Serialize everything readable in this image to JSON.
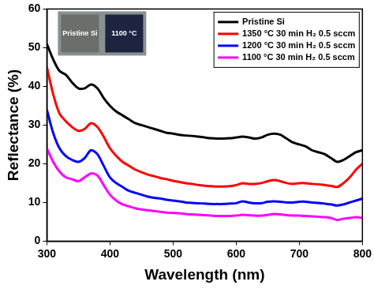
{
  "chart_data": {
    "type": "line",
    "x_label": "Wavelength (nm)",
    "y_label": "Reflectance (%)",
    "annotations": [
      "Pristine Si",
      "1100 °C"
    ],
    "x": [
      300,
      310,
      320,
      330,
      340,
      350,
      360,
      370,
      380,
      390,
      400,
      410,
      420,
      430,
      440,
      450,
      460,
      470,
      480,
      490,
      500,
      510,
      520,
      530,
      540,
      550,
      560,
      570,
      580,
      590,
      600,
      610,
      620,
      630,
      640,
      650,
      660,
      670,
      680,
      690,
      700,
      710,
      720,
      730,
      740,
      750,
      760,
      770,
      780,
      790,
      800
    ],
    "series": [
      {
        "name": "Pristine Si",
        "color": "#000000",
        "values": [
          51,
          47,
          44,
          43,
          41,
          39.5,
          39.5,
          40.5,
          39.5,
          37,
          35,
          33.5,
          32.5,
          31.5,
          30.5,
          30,
          29.5,
          29,
          28.5,
          28,
          27.8,
          27.5,
          27.3,
          27.2,
          27,
          26.8,
          26.6,
          26.5,
          26.5,
          26.6,
          26.8,
          27,
          26.8,
          26.5,
          26.8,
          27.5,
          27.8,
          27.5,
          26.5,
          25.5,
          25,
          24.5,
          23.5,
          23,
          22.5,
          21.5,
          20.5,
          21,
          22,
          23,
          23.5
        ]
      },
      {
        "name": "1350 °C 30 min H₂ 0.5 sccm",
        "color": "#ff0000",
        "values": [
          45,
          38,
          33,
          31,
          29.5,
          28.5,
          29,
          30.5,
          29.5,
          27,
          24,
          22,
          20.5,
          19.5,
          18.5,
          17.8,
          17.2,
          16.8,
          16.3,
          16,
          15.6,
          15.3,
          15,
          14.8,
          14.5,
          14.3,
          14.2,
          14.1,
          14.1,
          14.2,
          14.5,
          15,
          14.8,
          14.8,
          15,
          15.5,
          15.8,
          15.5,
          15,
          14.8,
          15,
          15,
          14.8,
          14.7,
          14.5,
          14.3,
          14,
          15,
          16.5,
          18.5,
          20
        ]
      },
      {
        "name": "1200 °C 30 min H₂ 0.5 sccm",
        "color": "#0000ff",
        "values": [
          34,
          28,
          24,
          22,
          21,
          20.5,
          21.5,
          23.5,
          22.5,
          19.5,
          16.5,
          15,
          14,
          13,
          12.5,
          12,
          11.5,
          11.2,
          11,
          10.7,
          10.5,
          10.3,
          10,
          9.9,
          9.8,
          9.7,
          9.6,
          9.6,
          9.6,
          9.7,
          9.8,
          10.3,
          10,
          9.8,
          9.8,
          10.2,
          10.3,
          10.2,
          10,
          10,
          10.2,
          10.2,
          10,
          9.9,
          9.7,
          9.5,
          9.2,
          9.5,
          10,
          10.5,
          11
        ]
      },
      {
        "name": "1100 °C 30 min H₂ 0.5 sccm",
        "color": "#ff00ff",
        "values": [
          24,
          20.5,
          18,
          16.5,
          16,
          15.5,
          16.5,
          17.5,
          17,
          14.5,
          12,
          10.5,
          9.5,
          9,
          8.5,
          8.2,
          8,
          7.8,
          7.6,
          7.4,
          7.3,
          7.2,
          7,
          6.9,
          6.8,
          6.7,
          6.6,
          6.5,
          6.5,
          6.5,
          6.6,
          6.8,
          6.7,
          6.6,
          6.6,
          6.8,
          7,
          6.9,
          6.7,
          6.6,
          6.6,
          6.5,
          6.4,
          6.3,
          6.2,
          6,
          5.5,
          5.8,
          6,
          6.2,
          6
        ]
      }
    ],
    "xlim": [
      300,
      800
    ],
    "xticks": [
      300,
      400,
      500,
      600,
      700,
      800
    ],
    "ylim": [
      0,
      60
    ],
    "yticks": [
      0,
      10,
      20,
      30,
      40,
      50,
      60
    ],
    "grid": false,
    "legend": "top-right"
  }
}
